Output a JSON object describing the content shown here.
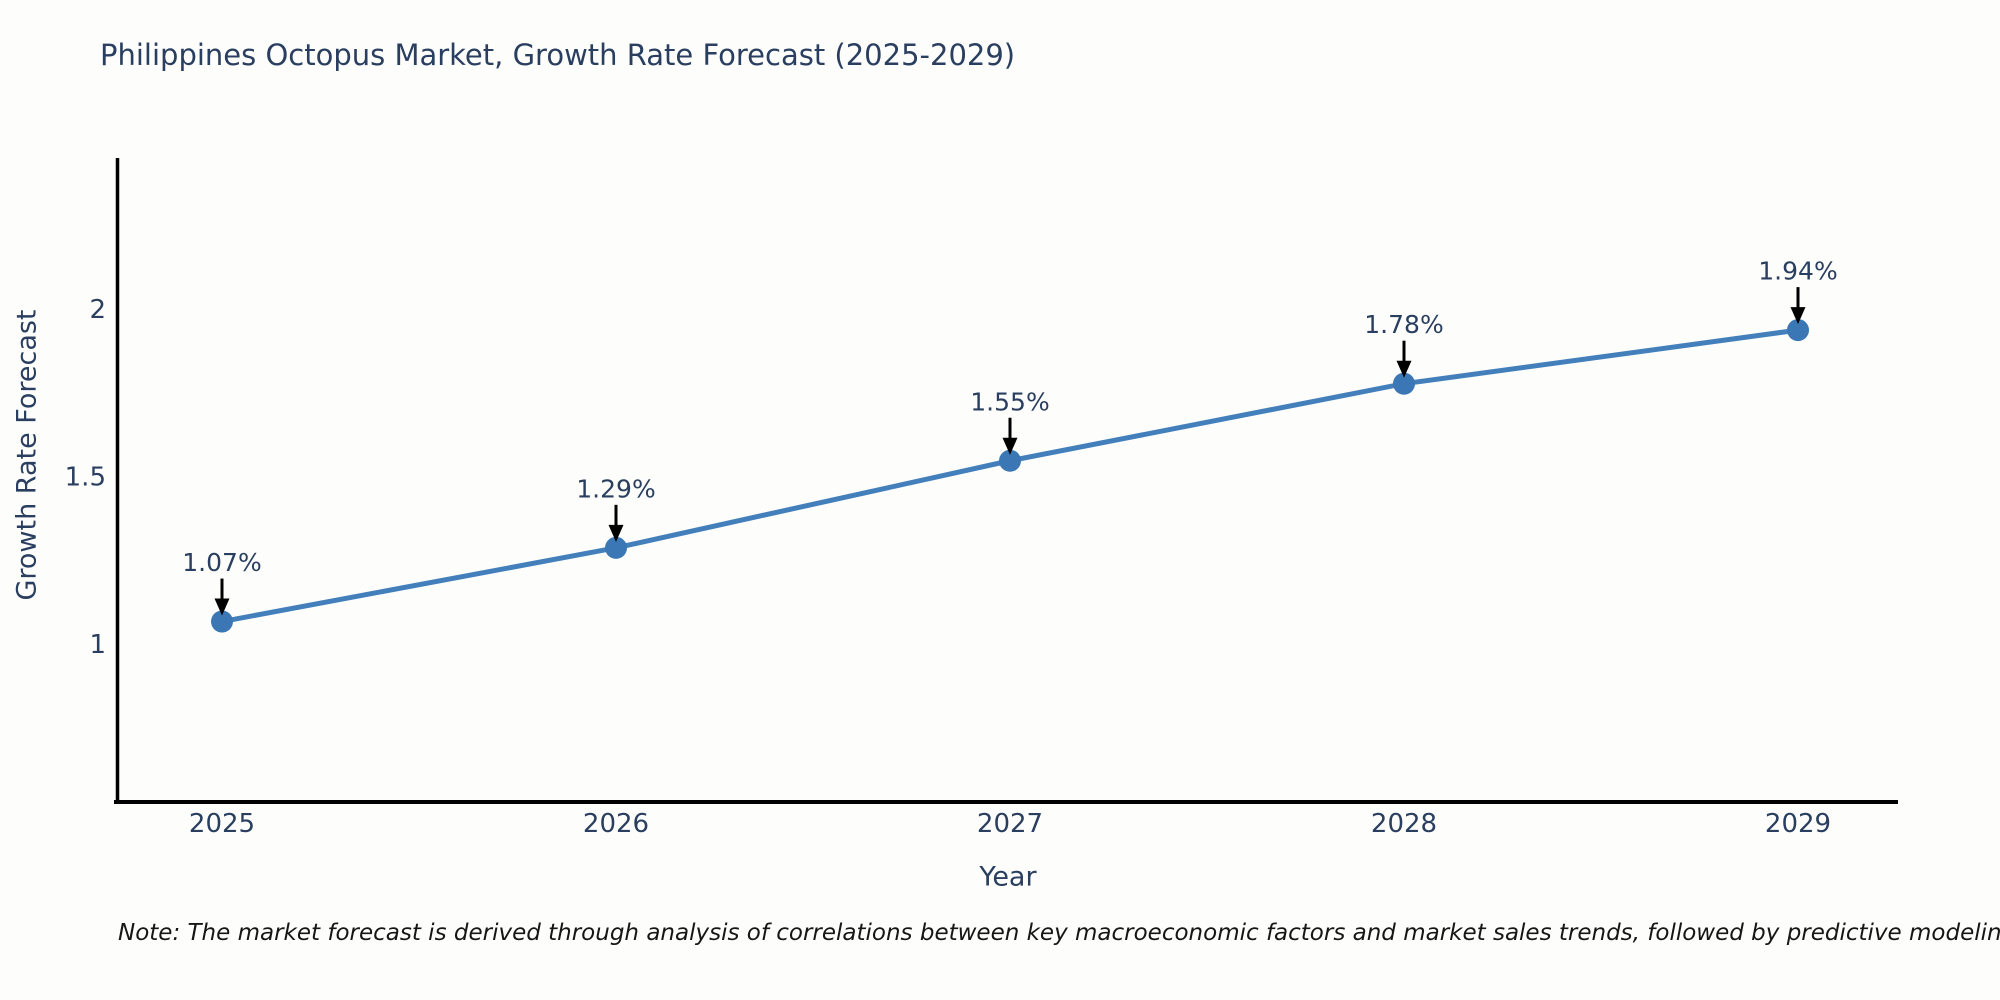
{
  "page": {
    "background_color": "#fdfdfc"
  },
  "header": {
    "title": "Philippines Octopus Market, Growth Rate Forecast (2025-2029)"
  },
  "footnote": {
    "text": "Note: The market forecast is derived through analysis of correlations between key macroeconomic factors and market sales trends, followed by predictive modeling to project future sales"
  },
  "chart_data": {
    "type": "line",
    "title": "Philippines Octopus Market, Growth Rate Forecast (2025-2029)",
    "xlabel": "Year",
    "ylabel": "Growth Rate Forecast",
    "categories": [
      "2025",
      "2026",
      "2027",
      "2028",
      "2029"
    ],
    "values": [
      1.07,
      1.29,
      1.55,
      1.78,
      1.94
    ],
    "point_labels": [
      "1.07%",
      "1.29%",
      "1.55%",
      "1.78%",
      "1.94%"
    ],
    "yticks": [
      "1",
      "1.5",
      "2"
    ],
    "ytick_values": [
      1,
      1.5,
      2
    ],
    "ylim": [
      0.53,
      2.45
    ],
    "xlim": [
      2024.72,
      2029.27
    ],
    "grid": false,
    "legend": "none",
    "annotation_arrows": true,
    "marker_style": "circle",
    "colors": {
      "line": "#4380bb",
      "marker": "#3a77b4",
      "axis": "#000000",
      "text": "#2a3f5f",
      "arrow": "#000000",
      "note": "#161616"
    }
  }
}
